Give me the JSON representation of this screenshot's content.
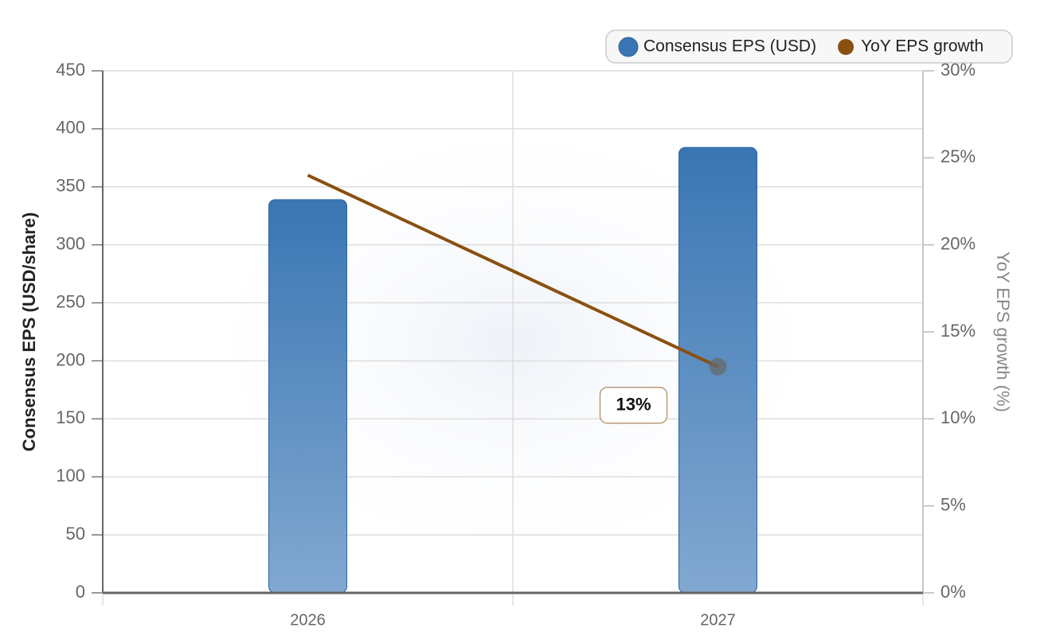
{
  "chart_data": {
    "type": "bar",
    "categories": [
      "2026",
      "2027"
    ],
    "series": [
      {
        "name": "Consensus EPS (USD)",
        "type": "bar",
        "color": "#3a76b3",
        "values": [
          339,
          384
        ]
      },
      {
        "name": "YoY EPS growth",
        "type": "line",
        "axis": "y2",
        "color": "#8a5010",
        "values": [
          24,
          13
        ],
        "value_labels": [
          null,
          "13%"
        ]
      }
    ],
    "ylabel": "Consensus EPS (USD/share)",
    "y2label": "YoY EPS growth (%)",
    "ylim": [
      0,
      450
    ],
    "yticks": [
      0,
      50,
      100,
      150,
      200,
      250,
      300,
      350,
      400,
      450
    ],
    "y2lim": [
      0,
      30
    ],
    "y2ticks": [
      {
        "value": 0,
        "label": "0%"
      },
      {
        "value": 5,
        "label": "5%"
      },
      {
        "value": 10,
        "label": "10%"
      },
      {
        "value": 15,
        "label": "15%"
      },
      {
        "value": 20,
        "label": "20%"
      },
      {
        "value": 25,
        "label": "25%"
      },
      {
        "value": 30,
        "label": "30%"
      }
    ],
    "grid": true,
    "legend": "top-right"
  }
}
